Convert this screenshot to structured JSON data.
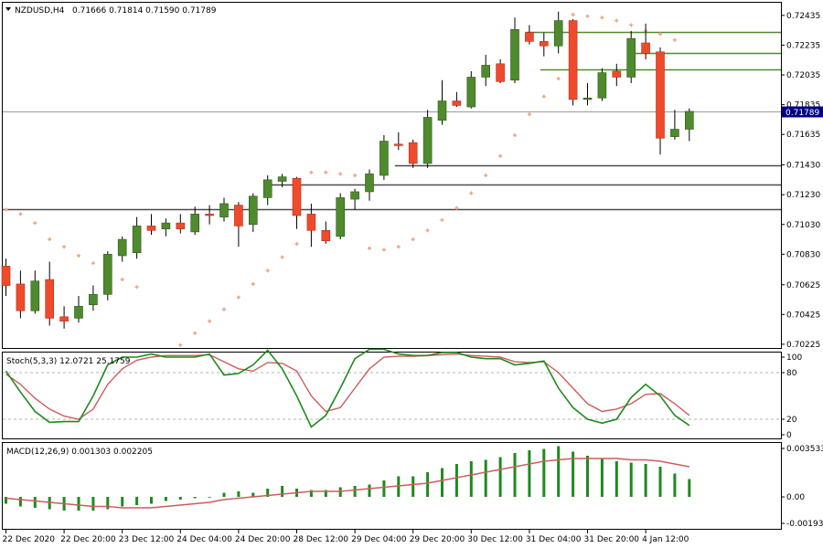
{
  "colors": {
    "bull": "#4f8a2e",
    "bull_outline": "#2c5a16",
    "bear": "#f04a2c",
    "bear_outline": "#b23018",
    "wick": "#000000",
    "sar": "#f0a68a",
    "level": "#4f8a2e",
    "grid": "#c8c8c8",
    "stoch_main": "#1e8a1e",
    "stoch_signal": "#cd5c5c",
    "macd_hist": "#1e8a1e",
    "macd_signal": "#cd5c5c",
    "price_badge": "#000080"
  },
  "header": {
    "symbol_label": "NZDUSD,H4",
    "ohlc_label": "0.71666 0.71814 0.71590 0.71789"
  },
  "price_badge": "0.71789",
  "stoch_label": "Stoch(5,3,3) 12.0721 25.1759",
  "macd_label": "MACD(12,26,9) 0.001303 0.002205",
  "chart_data": {
    "type": "candlestick",
    "symbol": "NZDUSD",
    "timeframe": "H4",
    "current_price": 0.71789,
    "price_axis": {
      "ylim": [
        0.702,
        0.7252
      ],
      "ticks": [
        "0.72435",
        "0.72235",
        "0.72035",
        "0.71835",
        "0.71635",
        "0.71430",
        "0.71230",
        "0.71030",
        "0.70830",
        "0.70625",
        "0.70425",
        "0.70225"
      ]
    },
    "time_labels": [
      {
        "index": 0,
        "label": "22 Dec 2020"
      },
      {
        "index": 4,
        "label": "22 Dec 20:00"
      },
      {
        "index": 8,
        "label": "23 Dec 12:00"
      },
      {
        "index": 12,
        "label": "24 Dec 04:00"
      },
      {
        "index": 16,
        "label": "24 Dec 20:00"
      },
      {
        "index": 20,
        "label": "28 Dec 12:00"
      },
      {
        "index": 24,
        "label": "29 Dec 04:00"
      },
      {
        "index": 28,
        "label": "29 Dec 20:00"
      },
      {
        "index": 32,
        "label": "30 Dec 12:00"
      },
      {
        "index": 36,
        "label": "31 Dec 04:00"
      },
      {
        "index": 40,
        "label": "31 Dec 20:00"
      },
      {
        "index": 44,
        "label": "4 Jan 12:00"
      }
    ],
    "candles": [
      {
        "o": 0.7075,
        "h": 0.708,
        "l": 0.7055,
        "c": 0.7062
      },
      {
        "o": 0.7063,
        "h": 0.7072,
        "l": 0.704,
        "c": 0.7045
      },
      {
        "o": 0.7045,
        "h": 0.7072,
        "l": 0.7043,
        "c": 0.7065
      },
      {
        "o": 0.7066,
        "h": 0.7078,
        "l": 0.7035,
        "c": 0.704
      },
      {
        "o": 0.7041,
        "h": 0.7048,
        "l": 0.7033,
        "c": 0.7038
      },
      {
        "o": 0.704,
        "h": 0.7055,
        "l": 0.7037,
        "c": 0.7048
      },
      {
        "o": 0.7049,
        "h": 0.7062,
        "l": 0.7045,
        "c": 0.7056
      },
      {
        "o": 0.7056,
        "h": 0.7085,
        "l": 0.7052,
        "c": 0.7083
      },
      {
        "o": 0.7082,
        "h": 0.7095,
        "l": 0.7078,
        "c": 0.7093
      },
      {
        "o": 0.7084,
        "h": 0.7108,
        "l": 0.708,
        "c": 0.7102
      },
      {
        "o": 0.7102,
        "h": 0.711,
        "l": 0.7096,
        "c": 0.7099
      },
      {
        "o": 0.71,
        "h": 0.7107,
        "l": 0.7095,
        "c": 0.7104
      },
      {
        "o": 0.7104,
        "h": 0.711,
        "l": 0.7097,
        "c": 0.71
      },
      {
        "o": 0.7098,
        "h": 0.7115,
        "l": 0.7096,
        "c": 0.711
      },
      {
        "o": 0.711,
        "h": 0.7116,
        "l": 0.7103,
        "c": 0.7109
      },
      {
        "o": 0.7108,
        "h": 0.7121,
        "l": 0.7105,
        "c": 0.7117
      },
      {
        "o": 0.7116,
        "h": 0.7118,
        "l": 0.7088,
        "c": 0.7102
      },
      {
        "o": 0.7103,
        "h": 0.7124,
        "l": 0.7098,
        "c": 0.7122
      },
      {
        "o": 0.7121,
        "h": 0.7136,
        "l": 0.7116,
        "c": 0.7133
      },
      {
        "o": 0.7132,
        "h": 0.7137,
        "l": 0.7128,
        "c": 0.7135
      },
      {
        "o": 0.7134,
        "h": 0.7135,
        "l": 0.71,
        "c": 0.7109
      },
      {
        "o": 0.711,
        "h": 0.7117,
        "l": 0.7088,
        "c": 0.7099
      },
      {
        "o": 0.7099,
        "h": 0.7105,
        "l": 0.709,
        "c": 0.7092
      },
      {
        "o": 0.7095,
        "h": 0.7124,
        "l": 0.7093,
        "c": 0.7121
      },
      {
        "o": 0.712,
        "h": 0.7127,
        "l": 0.7113,
        "c": 0.7125
      },
      {
        "o": 0.7125,
        "h": 0.714,
        "l": 0.7119,
        "c": 0.7137
      },
      {
        "o": 0.7136,
        "h": 0.7163,
        "l": 0.7133,
        "c": 0.7159
      },
      {
        "o": 0.7157,
        "h": 0.7165,
        "l": 0.7153,
        "c": 0.7156
      },
      {
        "o": 0.7158,
        "h": 0.716,
        "l": 0.7141,
        "c": 0.7144
      },
      {
        "o": 0.7144,
        "h": 0.718,
        "l": 0.7141,
        "c": 0.7175
      },
      {
        "o": 0.7173,
        "h": 0.72,
        "l": 0.717,
        "c": 0.7186
      },
      {
        "o": 0.7186,
        "h": 0.7192,
        "l": 0.7182,
        "c": 0.7183
      },
      {
        "o": 0.7182,
        "h": 0.7206,
        "l": 0.7181,
        "c": 0.7202
      },
      {
        "o": 0.7202,
        "h": 0.7217,
        "l": 0.7196,
        "c": 0.721
      },
      {
        "o": 0.7211,
        "h": 0.7214,
        "l": 0.7198,
        "c": 0.7199
      },
      {
        "o": 0.72,
        "h": 0.7242,
        "l": 0.7198,
        "c": 0.7234
      },
      {
        "o": 0.7232,
        "h": 0.7237,
        "l": 0.7224,
        "c": 0.7226
      },
      {
        "o": 0.7226,
        "h": 0.7232,
        "l": 0.7216,
        "c": 0.7223
      },
      {
        "o": 0.7223,
        "h": 0.7246,
        "l": 0.7218,
        "c": 0.724
      },
      {
        "o": 0.724,
        "h": 0.7241,
        "l": 0.7183,
        "c": 0.7187
      },
      {
        "o": 0.7187,
        "h": 0.7198,
        "l": 0.7183,
        "c": 0.7188
      },
      {
        "o": 0.7188,
        "h": 0.7208,
        "l": 0.7186,
        "c": 0.7205
      },
      {
        "o": 0.7206,
        "h": 0.7211,
        "l": 0.7196,
        "c": 0.7202
      },
      {
        "o": 0.7202,
        "h": 0.7233,
        "l": 0.7198,
        "c": 0.7228
      },
      {
        "o": 0.7225,
        "h": 0.7238,
        "l": 0.7214,
        "c": 0.7218
      },
      {
        "o": 0.7219,
        "h": 0.7222,
        "l": 0.715,
        "c": 0.7161
      },
      {
        "o": 0.7162,
        "h": 0.718,
        "l": 0.716,
        "c": 0.7167
      },
      {
        "o": 0.7167,
        "h": 0.7181,
        "l": 0.7159,
        "c": 0.7179
      }
    ],
    "sar": [
      {
        "i": 0,
        "v": 0.7113
      },
      {
        "i": 1,
        "v": 0.711
      },
      {
        "i": 2,
        "v": 0.7104
      },
      {
        "i": 3,
        "v": 0.7093
      },
      {
        "i": 4,
        "v": 0.7088
      },
      {
        "i": 5,
        "v": 0.7082
      },
      {
        "i": 6,
        "v": 0.7077
      },
      {
        "i": 7,
        "v": 0.7071
      },
      {
        "i": 8,
        "v": 0.7066
      },
      {
        "i": 9,
        "v": 0.7061
      },
      {
        "i": 12,
        "v": 0.7022
      },
      {
        "i": 13,
        "v": 0.703
      },
      {
        "i": 14,
        "v": 0.7038
      },
      {
        "i": 15,
        "v": 0.7046
      },
      {
        "i": 16,
        "v": 0.7054
      },
      {
        "i": 17,
        "v": 0.7063
      },
      {
        "i": 18,
        "v": 0.7072
      },
      {
        "i": 19,
        "v": 0.7081
      },
      {
        "i": 20,
        "v": 0.709
      },
      {
        "i": 21,
        "v": 0.7138
      },
      {
        "i": 22,
        "v": 0.7138
      },
      {
        "i": 23,
        "v": 0.7137
      },
      {
        "i": 24,
        "v": 0.7136
      },
      {
        "i": 25,
        "v": 0.7087
      },
      {
        "i": 26,
        "v": 0.7086
      },
      {
        "i": 27,
        "v": 0.7088
      },
      {
        "i": 28,
        "v": 0.7093
      },
      {
        "i": 29,
        "v": 0.7099
      },
      {
        "i": 30,
        "v": 0.7106
      },
      {
        "i": 31,
        "v": 0.7114
      },
      {
        "i": 32,
        "v": 0.7124
      },
      {
        "i": 33,
        "v": 0.7136
      },
      {
        "i": 34,
        "v": 0.7149
      },
      {
        "i": 35,
        "v": 0.7163
      },
      {
        "i": 36,
        "v": 0.7177
      },
      {
        "i": 37,
        "v": 0.7189
      },
      {
        "i": 38,
        "v": 0.7201
      },
      {
        "i": 39,
        "v": 0.7244
      },
      {
        "i": 40,
        "v": 0.7243
      },
      {
        "i": 41,
        "v": 0.7242
      },
      {
        "i": 42,
        "v": 0.724
      },
      {
        "i": 43,
        "v": 0.7237
      },
      {
        "i": 44,
        "v": 0.7233
      },
      {
        "i": 45,
        "v": 0.7231
      },
      {
        "i": 46,
        "v": 0.7227
      }
    ],
    "levels": [
      {
        "value": 0.72325,
        "color": "green",
        "from_index": 36
      },
      {
        "value": 0.72185,
        "color": "green",
        "from_index": 43
      },
      {
        "value": 0.7207,
        "color": "green",
        "from_index": 37
      },
      {
        "value": 0.7143,
        "color": "dark-gray",
        "from_index": 27
      },
      {
        "value": 0.713,
        "color": "dark-gray",
        "from_index": 18
      },
      {
        "value": 0.7113,
        "color": "dark-gray",
        "from_index": 0
      }
    ],
    "stochastic": {
      "params": "5,3,3",
      "main_value": 12.0721,
      "signal_value": 25.1759,
      "ylim": [
        0,
        100
      ],
      "levels": [
        80,
        20
      ],
      "axis_labels": [
        "100",
        "80",
        "20",
        "0"
      ],
      "main": [
        82,
        55,
        30,
        16,
        17,
        17,
        50,
        90,
        100,
        100,
        104,
        100,
        100,
        100,
        104,
        77,
        79,
        90,
        109,
        85,
        50,
        10,
        25,
        60,
        98,
        110,
        110,
        104,
        102,
        102,
        106,
        106,
        100,
        98,
        98,
        90,
        92,
        95,
        60,
        35,
        20,
        15,
        20,
        48,
        65,
        50,
        25,
        12
      ],
      "signal": [
        78,
        65,
        47,
        33,
        24,
        20,
        33,
        65,
        85,
        96,
        100,
        102,
        102,
        102,
        103,
        94,
        85,
        82,
        93,
        92,
        82,
        50,
        30,
        35,
        60,
        85,
        100,
        101,
        101,
        102,
        103,
        104,
        102,
        101,
        100,
        94,
        93,
        94,
        80,
        60,
        40,
        30,
        33,
        40,
        52,
        53,
        40,
        25
      ]
    },
    "macd": {
      "params": "12,26,9",
      "main_value": 0.001303,
      "signal_value": 0.002205,
      "ylim": [
        -0.00193,
        0.003533
      ],
      "axis_labels": [
        "0.003533",
        "0.00",
        "-0.001933"
      ],
      "histogram": [
        -0.0005,
        -0.0007,
        -0.0008,
        -0.0009,
        -0.001,
        -0.001,
        -0.001,
        -0.0009,
        -0.0007,
        -0.0006,
        -0.0005,
        -0.0003,
        -0.0002,
        -0.0001,
        0.0,
        0.0003,
        0.0004,
        0.0003,
        0.0006,
        0.0008,
        0.0006,
        0.0005,
        0.0005,
        0.0007,
        0.0008,
        0.0009,
        0.0012,
        0.0015,
        0.0015,
        0.0018,
        0.0021,
        0.0024,
        0.0026,
        0.0027,
        0.0029,
        0.0032,
        0.0034,
        0.0035,
        0.0037,
        0.0033,
        0.003,
        0.0028,
        0.0026,
        0.0025,
        0.0024,
        0.0022,
        0.0017,
        0.0013
      ],
      "signal": [
        -0.0001,
        -0.0002,
        -0.0003,
        -0.0004,
        -0.0005,
        -0.0006,
        -0.0007,
        -0.0007,
        -0.0008,
        -0.0008,
        -0.0008,
        -0.0007,
        -0.0006,
        -0.0005,
        -0.0004,
        -0.0002,
        -0.0001,
        0.0,
        0.0001,
        0.0002,
        0.0003,
        0.0004,
        0.0004,
        0.0004,
        0.0005,
        0.0006,
        0.0007,
        0.0008,
        0.0009,
        0.001,
        0.0012,
        0.0014,
        0.0016,
        0.0018,
        0.002,
        0.0022,
        0.0024,
        0.0026,
        0.0027,
        0.0028,
        0.0028,
        0.0028,
        0.0028,
        0.0027,
        0.0027,
        0.0026,
        0.0024,
        0.0022
      ]
    }
  }
}
